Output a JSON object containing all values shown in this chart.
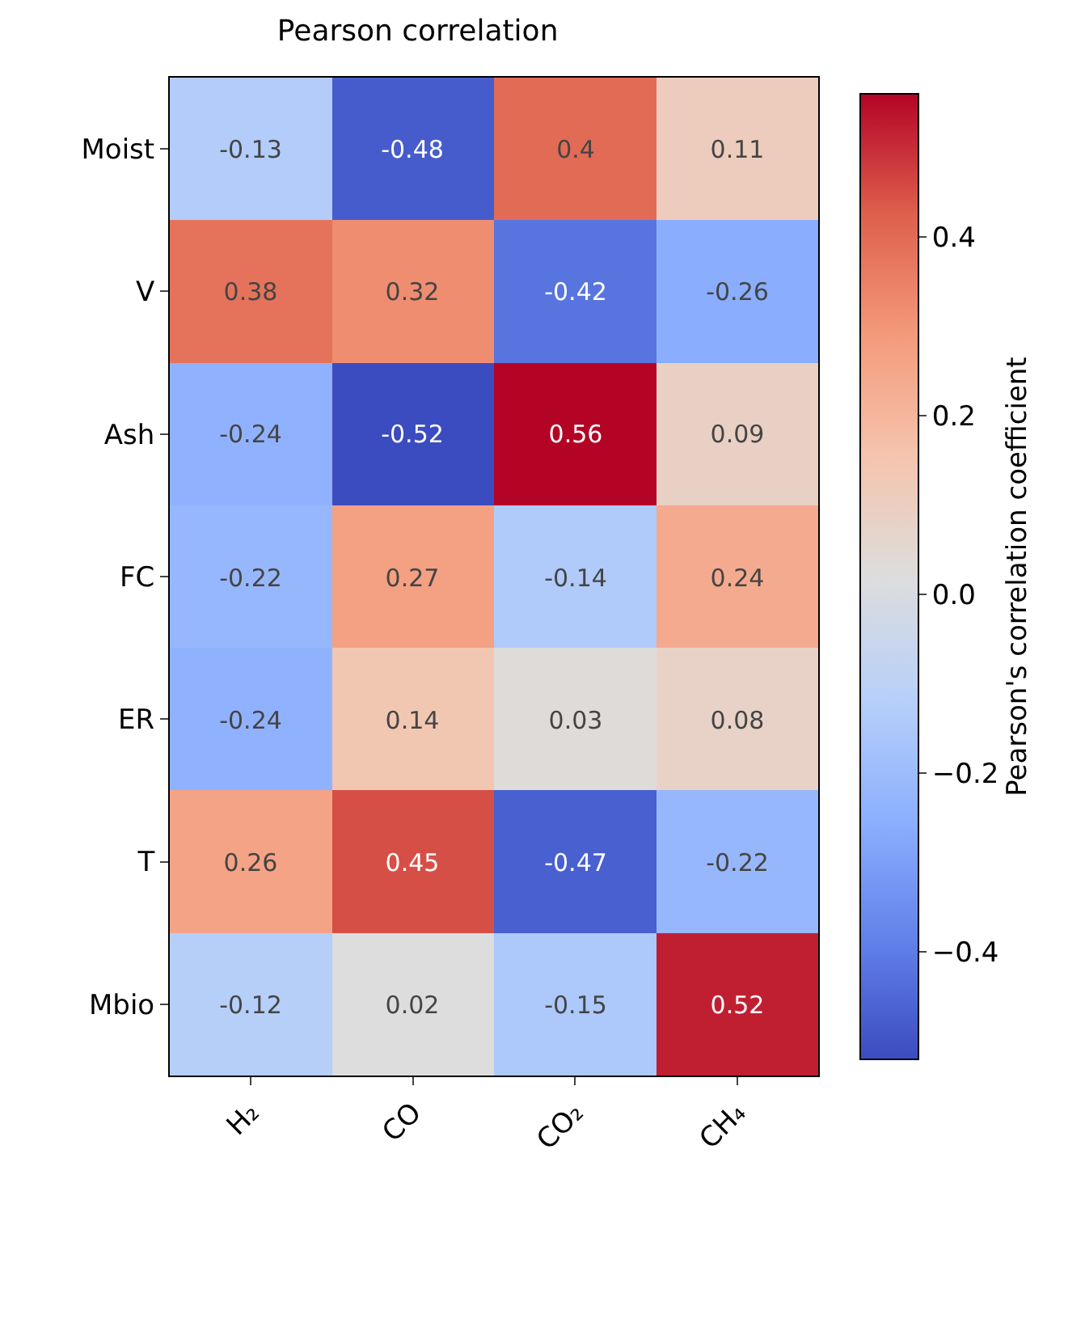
{
  "chart_data": {
    "type": "heatmap",
    "title": "Pearson correlation",
    "clabel": "Pearson's correlation coefficient",
    "categories": [
      "H₂",
      "CO",
      "CO₂",
      "CH₄"
    ],
    "y_categories": [
      "Moist",
      "V",
      "Ash",
      "FC",
      "ER",
      "T",
      "Mbio"
    ],
    "cells": [
      [
        -0.13,
        -0.48,
        0.4,
        0.11
      ],
      [
        0.38,
        0.32,
        -0.42,
        -0.26
      ],
      [
        -0.24,
        -0.52,
        0.56,
        0.09
      ],
      [
        -0.22,
        0.27,
        -0.14,
        0.24
      ],
      [
        -0.24,
        0.14,
        0.03,
        0.08
      ],
      [
        0.26,
        0.45,
        -0.47,
        -0.22
      ],
      [
        -0.12,
        0.02,
        -0.15,
        0.52
      ]
    ],
    "clim": [
      -0.52,
      0.56
    ],
    "cticks": [
      {
        "value": -0.4,
        "label": "−0.4"
      },
      {
        "value": -0.2,
        "label": "−0.2"
      },
      {
        "value": 0.0,
        "label": "0.0"
      },
      {
        "value": 0.2,
        "label": "0.2"
      },
      {
        "value": 0.4,
        "label": "0.4"
      }
    ],
    "data_labels": true
  }
}
